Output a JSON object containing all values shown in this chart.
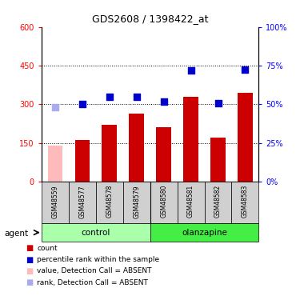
{
  "title": "GDS2608 / 1398422_at",
  "samples": [
    "GSM48559",
    "GSM48577",
    "GSM48578",
    "GSM48579",
    "GSM48580",
    "GSM48581",
    "GSM48582",
    "GSM48583"
  ],
  "bar_values": [
    140,
    160,
    220,
    265,
    210,
    330,
    170,
    345
  ],
  "bar_absent": [
    true,
    false,
    false,
    false,
    false,
    false,
    false,
    false
  ],
  "rank_values": [
    290,
    300,
    330,
    330,
    310,
    430,
    305,
    435
  ],
  "rank_absent": [
    true,
    false,
    false,
    false,
    false,
    false,
    false,
    false
  ],
  "bar_color_normal": "#cc0000",
  "bar_color_absent": "#ffbbbb",
  "rank_color_normal": "#0000cc",
  "rank_color_absent": "#aaaaee",
  "ylim_left": [
    0,
    600
  ],
  "ylim_right": [
    0,
    100
  ],
  "yticks_left": [
    0,
    150,
    300,
    450,
    600
  ],
  "yticks_right": [
    0,
    25,
    50,
    75,
    100
  ],
  "control_color": "#aaffaa",
  "olanzapine_color": "#44ee44",
  "label_bg_color": "#d0d0d0",
  "bar_width": 0.55,
  "dot_size": 40
}
